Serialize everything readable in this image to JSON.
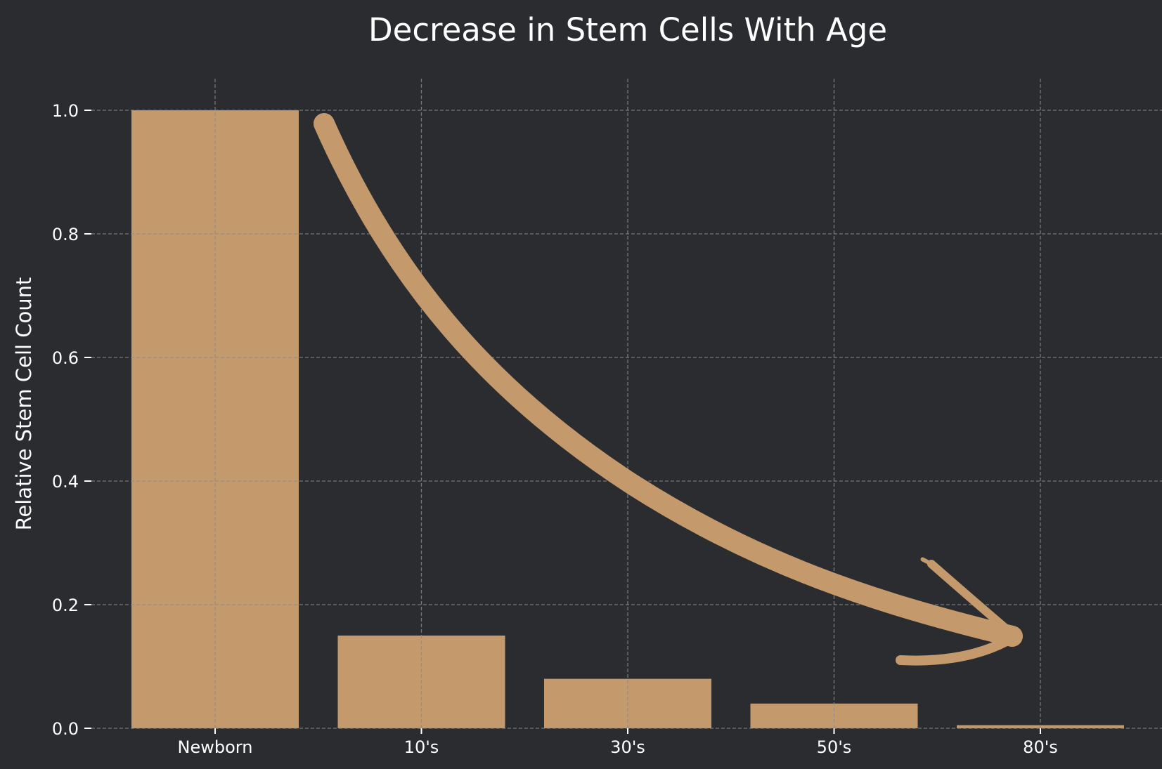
{
  "chart_data": {
    "type": "bar",
    "title": "Decrease in Stem Cells With Age",
    "xlabel": "",
    "ylabel": "Relative Stem Cell Count",
    "categories": [
      "Newborn",
      "10's",
      "30's",
      "50's",
      "80's"
    ],
    "values": [
      1.0,
      0.15,
      0.08,
      0.04,
      0.005
    ],
    "ylim": [
      0,
      1.05
    ],
    "yticks": [
      "0.0",
      "0.2",
      "0.4",
      "0.6",
      "0.8",
      "1.0"
    ],
    "grid": true,
    "annotation": "downward curved arrow from Newborn to 80's",
    "colors": {
      "bar": "#c49a6c",
      "background": "#2b2c30",
      "grid": "#8a8a8a",
      "text": "#ffffff"
    }
  }
}
